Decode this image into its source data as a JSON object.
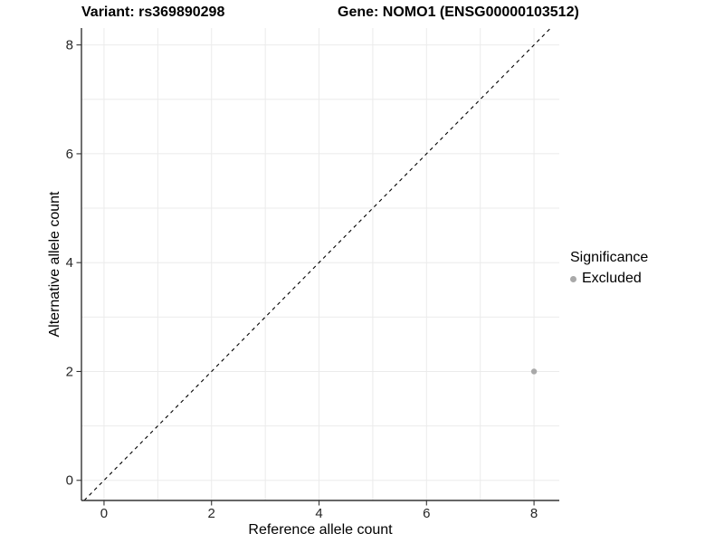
{
  "chart_data": {
    "type": "scatter",
    "title_left": "Variant: rs369890298",
    "title_right": "Gene: NOMO1 (ENSG00000103512)",
    "xlabel": "Reference allele count",
    "ylabel": "Alternative allele count",
    "xlim": [
      -0.42,
      8.47
    ],
    "ylim": [
      -0.37,
      8.31
    ],
    "x_ticks": [
      0,
      2,
      4,
      6,
      8
    ],
    "y_ticks": [
      0,
      2,
      4,
      6,
      8
    ],
    "grid": {
      "show": true,
      "interval": 1,
      "min": 0,
      "max": 8,
      "color": "#ebebeb"
    },
    "identity_line": {
      "style": "dashed",
      "equation": "y = x",
      "color": "#000000"
    },
    "points": [
      {
        "x": 8,
        "y": 2,
        "significance": "Excluded",
        "color": "#a9a9a9",
        "radius": 3.2
      }
    ],
    "legend": {
      "title": "Significance",
      "position": "right",
      "entries": [
        {
          "label": "Excluded",
          "marker": "circle-icon",
          "color": "#a9a9a9"
        }
      ]
    },
    "colors": {
      "axis": "#333333",
      "tick_label": "#262626",
      "text": "#000000",
      "background": "#ffffff"
    }
  }
}
